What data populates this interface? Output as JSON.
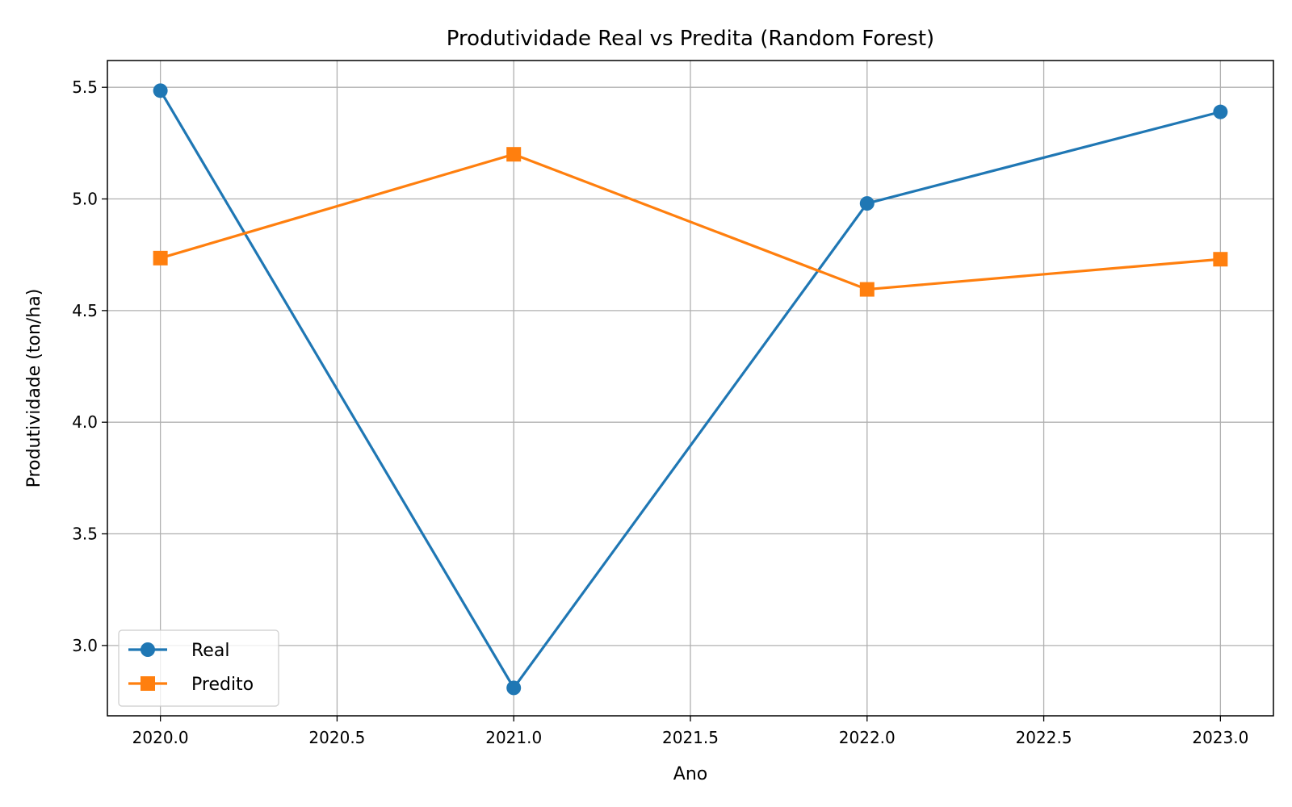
{
  "chart_data": {
    "type": "line",
    "title": "Produtividade Real vs Predita (Random Forest)",
    "xlabel": "Ano",
    "ylabel": "Produtividade (ton/ha)",
    "x": [
      2020,
      2021,
      2022,
      2023
    ],
    "xlim": [
      2019.85,
      2023.15
    ],
    "ylim": [
      2.685,
      5.62
    ],
    "xticks": [
      2020.0,
      2020.5,
      2021.0,
      2021.5,
      2022.0,
      2022.5,
      2023.0
    ],
    "xtick_labels": [
      "2020.0",
      "2020.5",
      "2021.0",
      "2021.5",
      "2022.0",
      "2022.5",
      "2023.0"
    ],
    "yticks": [
      3.0,
      3.5,
      4.0,
      4.5,
      5.0,
      5.5
    ],
    "ytick_labels": [
      "3.0",
      "3.5",
      "4.0",
      "4.5",
      "5.0",
      "5.5"
    ],
    "grid": true,
    "legend_position": "lower-left",
    "series": [
      {
        "name": "Real",
        "values": [
          5.485,
          2.81,
          4.98,
          5.39
        ],
        "color": "#1f77b4",
        "marker": "circle"
      },
      {
        "name": "Predito",
        "values": [
          4.735,
          5.2,
          4.595,
          4.73
        ],
        "color": "#ff7f0e",
        "marker": "square"
      }
    ]
  }
}
